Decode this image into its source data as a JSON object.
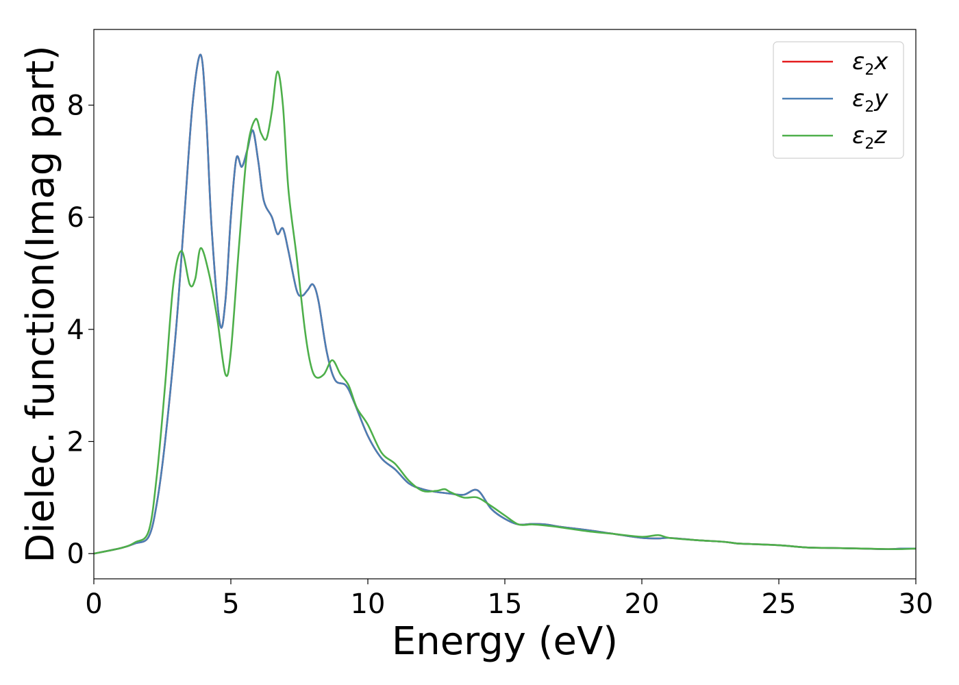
{
  "chart_data": {
    "type": "line",
    "xlabel": "Energy (eV)",
    "ylabel": "Dielec. function(Imag part)",
    "xlim": [
      0,
      30
    ],
    "ylim": [
      -0.45,
      9.35
    ],
    "xticks": [
      0,
      5,
      10,
      15,
      20,
      25,
      30
    ],
    "xtick_labels": [
      "0",
      "5",
      "10",
      "15",
      "20",
      "25",
      "30"
    ],
    "yticks": [
      0,
      2,
      4,
      6,
      8
    ],
    "ytick_labels": [
      "0",
      "2",
      "4",
      "6",
      "8"
    ],
    "grid": false,
    "legend_position": "top-right",
    "series": [
      {
        "name": "ε2x",
        "legend_main": "ε",
        "legend_sub": "2",
        "legend_var": "x",
        "color": "#e41a1c",
        "x": [
          0,
          1,
          1.5,
          2,
          2.3,
          2.6,
          3.0,
          3.3,
          3.6,
          3.9,
          4.1,
          4.3,
          4.6,
          4.8,
          5.0,
          5.2,
          5.4,
          5.6,
          5.8,
          6.0,
          6.2,
          6.5,
          6.7,
          6.9,
          7.1,
          7.4,
          7.6,
          7.8,
          8.0,
          8.2,
          8.5,
          8.8,
          9.2,
          9.5,
          10.0,
          10.5,
          11.0,
          11.5,
          12.0,
          12.5,
          13.0,
          13.5,
          14.0,
          14.5,
          15.0,
          15.5,
          16.0,
          16.5,
          17.0,
          18.0,
          19.0,
          20.0,
          20.6,
          21.0,
          22.0,
          23.0,
          23.5,
          24.0,
          25.0,
          26.0,
          27.0,
          28.0,
          29.0,
          29.5,
          30.0
        ],
        "y": [
          0,
          0.1,
          0.18,
          0.3,
          0.9,
          2.0,
          4.0,
          6.0,
          8.0,
          8.9,
          7.8,
          5.8,
          4.1,
          4.5,
          6.0,
          7.05,
          6.9,
          7.2,
          7.55,
          7.0,
          6.3,
          6.0,
          5.7,
          5.8,
          5.4,
          4.7,
          4.6,
          4.7,
          4.8,
          4.5,
          3.6,
          3.1,
          3.0,
          2.7,
          2.1,
          1.7,
          1.5,
          1.25,
          1.15,
          1.1,
          1.07,
          1.05,
          1.13,
          0.8,
          0.62,
          0.52,
          0.53,
          0.52,
          0.48,
          0.42,
          0.35,
          0.28,
          0.27,
          0.28,
          0.24,
          0.21,
          0.18,
          0.17,
          0.15,
          0.11,
          0.1,
          0.09,
          0.08,
          0.09,
          0.09
        ]
      },
      {
        "name": "ε2y",
        "legend_main": "ε",
        "legend_sub": "2",
        "legend_var": "y",
        "color": "#4a7fb5",
        "x": [
          0,
          1,
          1.5,
          2,
          2.3,
          2.6,
          3.0,
          3.3,
          3.6,
          3.9,
          4.1,
          4.3,
          4.6,
          4.8,
          5.0,
          5.2,
          5.4,
          5.6,
          5.8,
          6.0,
          6.2,
          6.5,
          6.7,
          6.9,
          7.1,
          7.4,
          7.6,
          7.8,
          8.0,
          8.2,
          8.5,
          8.8,
          9.2,
          9.5,
          10.0,
          10.5,
          11.0,
          11.5,
          12.0,
          12.5,
          13.0,
          13.5,
          14.0,
          14.5,
          15.0,
          15.5,
          16.0,
          16.5,
          17.0,
          18.0,
          19.0,
          20.0,
          20.6,
          21.0,
          22.0,
          23.0,
          23.5,
          24.0,
          25.0,
          26.0,
          27.0,
          28.0,
          29.0,
          29.5,
          30.0
        ],
        "y": [
          0,
          0.1,
          0.18,
          0.3,
          0.9,
          2.0,
          4.0,
          6.0,
          8.0,
          8.9,
          7.8,
          5.8,
          4.1,
          4.5,
          6.0,
          7.05,
          6.9,
          7.2,
          7.55,
          7.0,
          6.3,
          6.0,
          5.7,
          5.8,
          5.4,
          4.7,
          4.6,
          4.7,
          4.8,
          4.5,
          3.6,
          3.1,
          3.0,
          2.7,
          2.1,
          1.7,
          1.5,
          1.25,
          1.15,
          1.1,
          1.07,
          1.05,
          1.13,
          0.8,
          0.62,
          0.52,
          0.53,
          0.52,
          0.48,
          0.42,
          0.35,
          0.28,
          0.27,
          0.28,
          0.24,
          0.21,
          0.18,
          0.17,
          0.15,
          0.11,
          0.1,
          0.09,
          0.08,
          0.09,
          0.09
        ]
      },
      {
        "name": "ε2z",
        "legend_main": "ε",
        "legend_sub": "2",
        "legend_var": "z",
        "color": "#4daf4a",
        "x": [
          0,
          1,
          1.5,
          2,
          2.3,
          2.6,
          2.9,
          3.2,
          3.5,
          3.7,
          3.9,
          4.2,
          4.5,
          4.8,
          5.0,
          5.3,
          5.6,
          5.9,
          6.1,
          6.3,
          6.5,
          6.7,
          6.9,
          7.1,
          7.4,
          7.7,
          7.9,
          8.1,
          8.4,
          8.7,
          9.0,
          9.3,
          9.6,
          10.0,
          10.5,
          11.0,
          11.5,
          12.0,
          12.5,
          12.8,
          13.0,
          13.5,
          14.0,
          14.5,
          15.0,
          15.5,
          16.0,
          16.5,
          17.0,
          18.0,
          19.0,
          20.0,
          20.6,
          21.0,
          22.0,
          23.0,
          23.5,
          24.0,
          25.0,
          26.0,
          27.0,
          28.0,
          29.0,
          29.5,
          30.0
        ],
        "y": [
          0,
          0.1,
          0.2,
          0.4,
          1.4,
          3.0,
          4.8,
          5.4,
          4.8,
          4.9,
          5.45,
          5.0,
          4.2,
          3.2,
          3.6,
          5.5,
          7.2,
          7.75,
          7.5,
          7.4,
          7.9,
          8.6,
          8.0,
          6.5,
          5.3,
          4.0,
          3.4,
          3.15,
          3.2,
          3.45,
          3.2,
          3.0,
          2.6,
          2.3,
          1.8,
          1.6,
          1.3,
          1.12,
          1.12,
          1.15,
          1.1,
          1.0,
          1.0,
          0.85,
          0.68,
          0.52,
          0.52,
          0.5,
          0.47,
          0.4,
          0.35,
          0.3,
          0.33,
          0.28,
          0.24,
          0.21,
          0.18,
          0.17,
          0.15,
          0.11,
          0.1,
          0.09,
          0.08,
          0.08,
          0.09
        ]
      }
    ]
  }
}
